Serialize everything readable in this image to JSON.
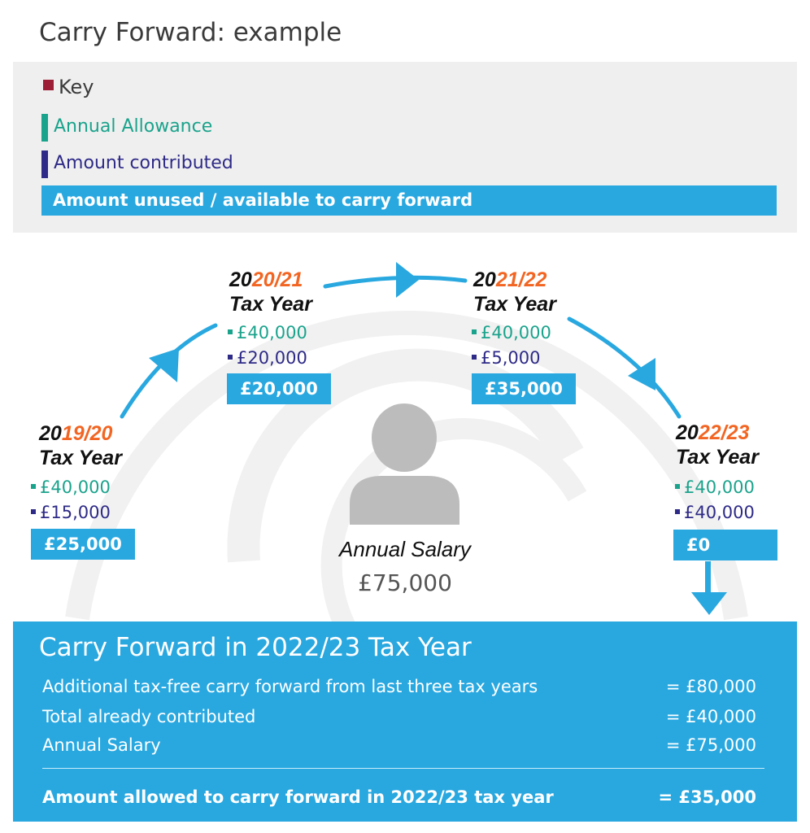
{
  "title": "Carry Forward: example",
  "key": {
    "title": "Key",
    "allowance": "Annual Allowance",
    "contributed": "Amount contributed",
    "unused": "Amount unused / available to carry forward"
  },
  "years": [
    {
      "prefix": "20",
      "suffix": "19/20",
      "label": "Tax Year",
      "allowance": "£40,000",
      "contributed": "£15,000",
      "unused": "£25,000"
    },
    {
      "prefix": "20",
      "suffix": "20/21",
      "label": "Tax Year",
      "allowance": "£40,000",
      "contributed": "£20,000",
      "unused": "£20,000"
    },
    {
      "prefix": "20",
      "suffix": "21/22",
      "label": "Tax Year",
      "allowance": "£40,000",
      "contributed": "£5,000",
      "unused": "£35,000"
    },
    {
      "prefix": "20",
      "suffix": "22/23",
      "label": "Tax Year",
      "allowance": "£40,000",
      "contributed": "£40,000",
      "unused": "£0"
    }
  ],
  "salary": {
    "label": "Annual Salary",
    "value": "£75,000"
  },
  "summary": {
    "title": "Carry Forward in 2022/23 Tax Year",
    "rows": [
      {
        "label": "Additional tax-free carry forward from last three tax years",
        "amount": "= £80,000"
      },
      {
        "label": "Total already contributed",
        "amount": "= £40,000"
      },
      {
        "label": "Annual Salary",
        "amount": "= £75,000"
      }
    ],
    "total": {
      "label": "Amount allowed to carry forward in 2022/23 tax year",
      "amount": "= £35,000"
    }
  },
  "colors": {
    "key_marker": "#9b1d36",
    "allowance": "#1aa38c",
    "contributed": "#2e2a87",
    "unused": "#29a8e0",
    "year_accent": "#f26522",
    "arrow": "#29a8e0"
  },
  "icons": [
    "person-icon",
    "arrow-icon"
  ]
}
